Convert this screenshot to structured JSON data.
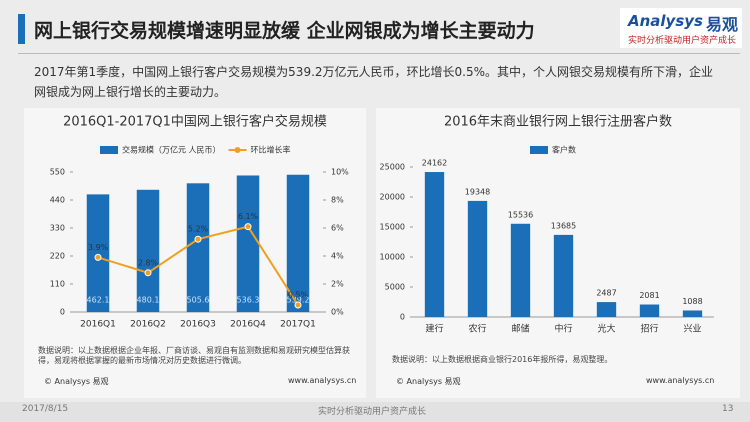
{
  "header": {
    "title": "网上银行交易规模增速明显放缓 企业网银成为增长主要动力"
  },
  "logo": {
    "brand": "Analysys",
    "cn": "易观",
    "tagline": "实时分析驱动用户资产成长"
  },
  "summary": "2017年第1季度，中国网上银行客户交易规模为539.2万亿元人民币，环比增长0.5%。其中，个人网银交易规模有所下滑，企业网银成为网上银行增长的主要动力。",
  "chart_data": [
    {
      "type": "bar",
      "title": "2016Q1-2017Q1中国网上银行客户交易规模",
      "categories": [
        "2016Q1",
        "2016Q2",
        "2016Q3",
        "2016Q4",
        "2017Q1"
      ],
      "series": [
        {
          "name": "交易规模（万亿元 人民币）",
          "color": "#1a6fb8",
          "values": [
            462.1,
            480.1,
            505.6,
            536.3,
            539.2
          ]
        },
        {
          "name": "环比增长率",
          "type": "line",
          "axis": "y2",
          "color": "#f0a020",
          "values": [
            3.9,
            2.8,
            5.2,
            6.1,
            0.5
          ],
          "value_labels": [
            "3.9%",
            "2.8%",
            "5.2%",
            "6.1%",
            "0.5%"
          ]
        }
      ],
      "ylim": [
        0,
        550
      ],
      "yticks": [
        0,
        110,
        220,
        330,
        440,
        550
      ],
      "y2lim": [
        0,
        10
      ],
      "y2ticks": [
        {
          "value": 0,
          "label": "0%"
        },
        {
          "value": 2,
          "label": "2%"
        },
        {
          "value": 4,
          "label": "4%"
        },
        {
          "value": 6,
          "label": "6%"
        },
        {
          "value": 8,
          "label": "8%"
        },
        {
          "value": 10,
          "label": "10%"
        }
      ]
    },
    {
      "type": "bar",
      "title": "2016年末商业银行网上银行注册客户数",
      "categories": [
        "建行",
        "农行",
        "邮储",
        "中行",
        "光大",
        "招行",
        "兴业"
      ],
      "series": [
        {
          "name": "客户数",
          "color": "#1a6fb8",
          "values": [
            24162,
            19348,
            15536,
            13685,
            2487,
            2081,
            1088
          ]
        }
      ],
      "ylim": [
        0,
        25000
      ],
      "yticks": [
        0,
        5000,
        10000,
        15000,
        20000,
        25000
      ]
    }
  ],
  "notes": [
    {
      "text": "数据说明：以上数据根据企业年报、厂商访谈、易观自有监测数据和易观研究模型估算获得，易观将根据掌握的最新市场情况对历史数据进行微调。",
      "copyright": "© Analysys 易观",
      "url": "www.analysys.cn"
    },
    {
      "text": "数据说明：以上数据根据商业银行2016年报所得，易观整理。",
      "copyright": "© Analysys 易观",
      "url": "www.analysys.cn"
    }
  ],
  "footer": {
    "date": "2017/8/15",
    "slogan": "实时分析驱动用户资产成长",
    "page": 13
  }
}
